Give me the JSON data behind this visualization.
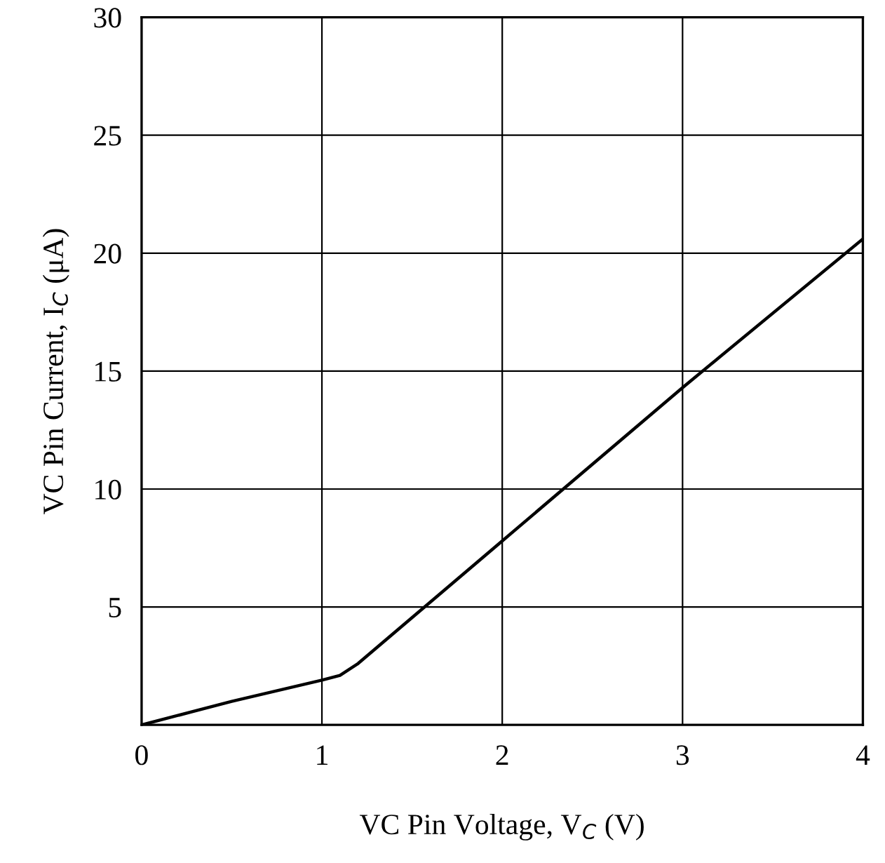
{
  "chart_data": {
    "type": "line",
    "xlabel": "VC Pin Voltage, V$_{C}$ (V)",
    "ylabel": "VC Pin Current, I$_{C}$ (μA)",
    "x": [
      0,
      0.5,
      1.0,
      1.1,
      1.2,
      2.0,
      3.0,
      4.0
    ],
    "series": [
      {
        "color": "#000000",
        "values": [
          0,
          1.0,
          1.9,
          2.1,
          2.6,
          7.8,
          14.3,
          20.6
        ]
      }
    ],
    "xlim": [
      0,
      4
    ],
    "ylim": [
      0,
      30
    ],
    "xticks": [
      0,
      1,
      2,
      3,
      4
    ],
    "yticks": [
      5,
      10,
      15,
      20,
      25,
      30
    ],
    "grid": true,
    "marker": "none",
    "line_style": "solid"
  }
}
